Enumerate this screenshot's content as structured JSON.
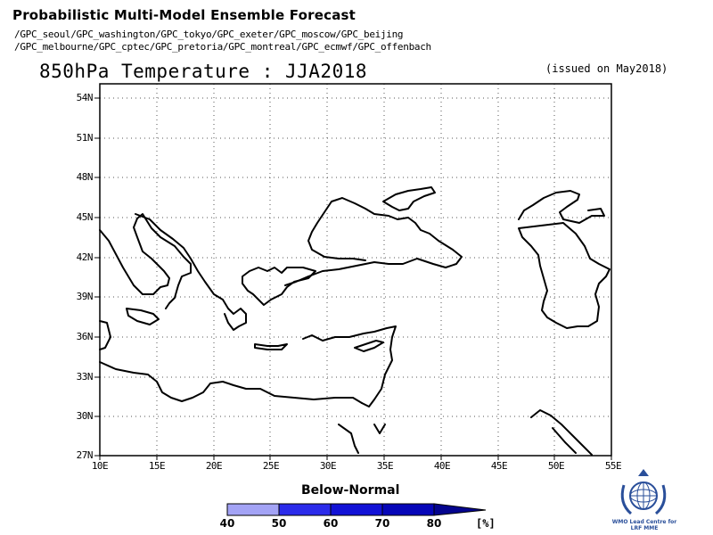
{
  "header": {
    "title": "Probabilistic Multi-Model Ensemble Forecast",
    "sources_line1": "/GPC_seoul/GPC_washington/GPC_tokyo/GPC_exeter/GPC_moscow/GPC_beijing",
    "sources_line2": "/GPC_melbourne/GPC_cptec/GPC_pretoria/GPC_montreal/GPC_ecmwf/GPC_offenbach"
  },
  "map": {
    "title": "850hPa Temperature : JJA2018",
    "issued": "(issued on May2018)",
    "lat_labels": [
      "54N",
      "51N",
      "48N",
      "45N",
      "42N",
      "39N",
      "36N",
      "33N",
      "30N",
      "27N"
    ],
    "lon_labels": [
      "10E",
      "15E",
      "20E",
      "25E",
      "30E",
      "35E",
      "40E",
      "45E",
      "50E",
      "55E"
    ],
    "lat_range": [
      27,
      55
    ],
    "lon_range": [
      10,
      55
    ],
    "grid": "dotted",
    "shaded_regions": []
  },
  "legend": {
    "title": "Below-Normal",
    "labels": [
      "40",
      "50",
      "60",
      "70",
      "80"
    ],
    "unit": "[%]",
    "colors": [
      "#a3a3f5",
      "#2b2bea",
      "#1212d6",
      "#0606b8",
      "#04048e"
    ]
  },
  "logo": {
    "icon": "wmo-emblem-icon",
    "line1": "WMO Lead Centre for",
    "line2": "LRF MME"
  }
}
